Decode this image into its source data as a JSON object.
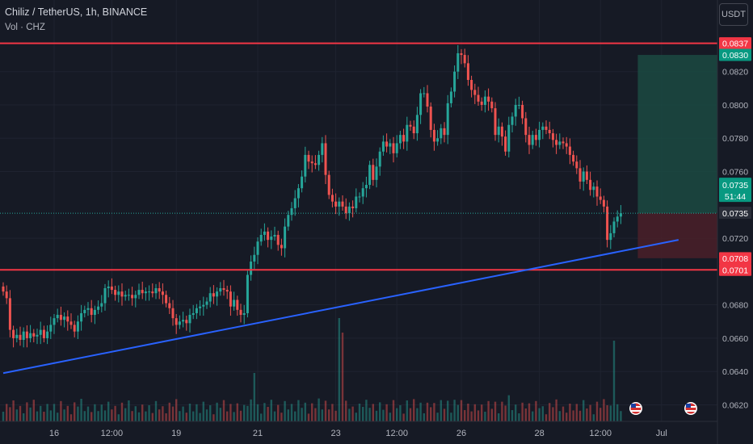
{
  "header": {
    "symbol_line": "Chiliz / TetherUS, 1h, BINANCE",
    "volume_line": "Vol · CHZ"
  },
  "currency_button": "USDT",
  "colors": {
    "background": "#161a25",
    "up": "#26a69a",
    "down": "#ef5350",
    "level_line": "#f23645",
    "trend_line": "#2962ff",
    "target_zone": "#1b4a42",
    "stop_zone": "#4a2029"
  },
  "chart_data": {
    "type": "candlestick",
    "ylim": [
      0.0612,
      0.0862
    ],
    "y_ticks": [
      "0.0620",
      "0.0640",
      "0.0660",
      "0.0680",
      "0.0720",
      "0.0760",
      "0.0780",
      "0.0800",
      "0.0820"
    ],
    "x_ticks": [
      {
        "label": "16",
        "i": 15
      },
      {
        "label": "12:00",
        "i": 32
      },
      {
        "label": "19",
        "i": 51
      },
      {
        "label": "21",
        "i": 75
      },
      {
        "label": "23",
        "i": 98
      },
      {
        "label": "12:00",
        "i": 116
      },
      {
        "label": "26",
        "i": 135
      },
      {
        "label": "28",
        "i": 158
      },
      {
        "label": "12:00",
        "i": 176
      },
      {
        "label": "Jul",
        "i": 194
      }
    ],
    "closes": [
      0.0688,
      0.0684,
      0.0665,
      0.066,
      0.0662,
      0.0659,
      0.0664,
      0.066,
      0.0663,
      0.0661,
      0.0662,
      0.0665,
      0.066,
      0.0664,
      0.0668,
      0.0672,
      0.0674,
      0.0671,
      0.0673,
      0.067,
      0.0668,
      0.0664,
      0.067,
      0.0675,
      0.0677,
      0.0678,
      0.0674,
      0.0677,
      0.0679,
      0.0681,
      0.069,
      0.0691,
      0.0689,
      0.0686,
      0.0688,
      0.0685,
      0.0686,
      0.0686,
      0.0684,
      0.0686,
      0.0689,
      0.0687,
      0.0688,
      0.0688,
      0.0687,
      0.069,
      0.0688,
      0.0686,
      0.0681,
      0.0678,
      0.0672,
      0.0668,
      0.067,
      0.0671,
      0.0669,
      0.0674,
      0.0675,
      0.0678,
      0.0679,
      0.068,
      0.0682,
      0.0687,
      0.0685,
      0.0688,
      0.069,
      0.0689,
      0.0688,
      0.0679,
      0.0683,
      0.0677,
      0.0674,
      0.0675,
      0.0698,
      0.0706,
      0.071,
      0.0718,
      0.0722,
      0.0724,
      0.0719,
      0.0721,
      0.0722,
      0.0716,
      0.0714,
      0.0727,
      0.0734,
      0.0738,
      0.0744,
      0.075,
      0.0757,
      0.077,
      0.0766,
      0.0765,
      0.0764,
      0.077,
      0.0777,
      0.0758,
      0.0746,
      0.0742,
      0.0739,
      0.0742,
      0.0739,
      0.0735,
      0.0739,
      0.0738,
      0.0745,
      0.0745,
      0.075,
      0.0752,
      0.0764,
      0.0755,
      0.0763,
      0.0772,
      0.0778,
      0.0775,
      0.0777,
      0.0771,
      0.0777,
      0.0782,
      0.0778,
      0.0788,
      0.0787,
      0.0783,
      0.0794,
      0.0807,
      0.0807,
      0.0799,
      0.0785,
      0.0778,
      0.078,
      0.0786,
      0.0782,
      0.0801,
      0.0808,
      0.082,
      0.0831,
      0.083,
      0.0825,
      0.0815,
      0.0809,
      0.0806,
      0.0802,
      0.08,
      0.0805,
      0.0802,
      0.0798,
      0.0782,
      0.0787,
      0.0781,
      0.0772,
      0.0788,
      0.0793,
      0.08,
      0.08,
      0.0792,
      0.0782,
      0.0776,
      0.0782,
      0.0779,
      0.0785,
      0.0787,
      0.0785,
      0.0783,
      0.0779,
      0.0776,
      0.0778,
      0.0777,
      0.0775,
      0.077,
      0.0766,
      0.0762,
      0.0754,
      0.076,
      0.0755,
      0.0749,
      0.0751,
      0.0745,
      0.0743,
      0.0739,
      0.0719,
      0.0723,
      0.073,
      0.0733,
      0.0735
    ],
    "last_price": "0.0735",
    "countdown": "51:44",
    "levels": {
      "resistance": {
        "value": 0.0837,
        "label": "0.0837"
      },
      "support": {
        "value": 0.0701,
        "label": "0.0701"
      }
    },
    "trend_line": {
      "from_i": 0,
      "from_y": 0.0639,
      "to_i": 199,
      "to_y": 0.0719
    },
    "position": {
      "entry": 0.0735,
      "target": 0.083,
      "stop": 0.0708,
      "entry_label": "0.0735",
      "target_label": "0.0830",
      "stop_label": "0.0708"
    }
  }
}
